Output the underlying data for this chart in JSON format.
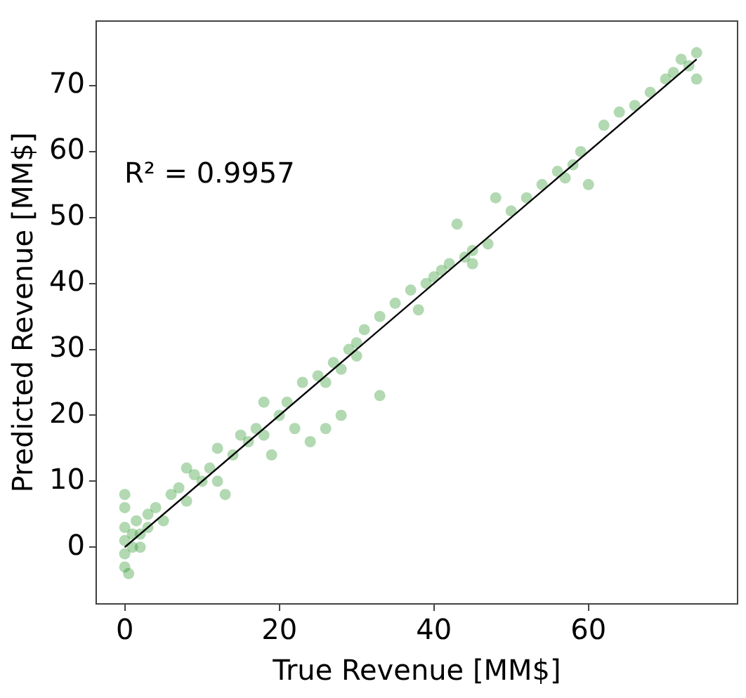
{
  "chart_data": {
    "type": "scatter",
    "xlabel": "True Revenue [MM$]",
    "ylabel": "Predicted Revenue [MM$]",
    "annotations": [
      "R² = 0.9957"
    ],
    "xlim": [
      -3.7,
      79.3
    ],
    "ylim": [
      -8.6,
      79.8
    ],
    "xticks": [
      0,
      20,
      40,
      60
    ],
    "yticks": [
      0,
      10,
      20,
      30,
      40,
      50,
      60,
      70
    ],
    "grid": false,
    "legend": false,
    "marker": "circle",
    "series": [
      {
        "color": "#008000",
        "x": [
          0,
          0,
          0,
          0,
          0,
          0,
          0.5,
          1,
          1,
          1.5,
          2,
          2,
          3,
          3,
          4,
          5,
          6,
          7,
          8,
          8,
          9,
          10,
          11,
          12,
          12,
          13,
          14,
          15,
          16,
          17,
          18,
          18,
          19,
          20,
          21,
          22,
          23,
          24,
          25,
          26,
          26,
          27,
          28,
          28,
          29,
          30,
          30,
          31,
          33,
          33,
          35,
          37,
          38,
          39,
          40,
          41,
          42,
          43,
          44,
          45,
          45,
          47,
          48,
          50,
          52,
          54,
          56,
          57,
          58,
          59,
          60,
          62,
          64,
          66,
          68,
          70,
          71,
          72,
          73,
          74,
          74
        ],
        "values": [
          -3,
          -1,
          1,
          3,
          6,
          8,
          -4,
          0,
          2,
          4,
          0,
          2,
          3,
          5,
          6,
          4,
          8,
          9,
          7,
          12,
          11,
          10,
          12,
          10,
          15,
          8,
          14,
          17,
          16,
          18,
          17,
          22,
          14,
          20,
          22,
          18,
          25,
          16,
          26,
          25,
          18,
          28,
          27,
          20,
          30,
          31,
          29,
          33,
          23,
          35,
          37,
          39,
          36,
          40,
          41,
          42,
          43,
          49,
          44,
          45,
          43,
          46,
          53,
          51,
          53,
          55,
          57,
          56,
          58,
          60,
          55,
          64,
          66,
          67,
          69,
          71,
          72,
          74,
          73,
          75,
          71
        ]
      },
      {
        "type": "line",
        "color": "#000000",
        "x": [
          0,
          74
        ],
        "values": [
          0,
          74
        ],
        "marker": "none"
      }
    ]
  }
}
